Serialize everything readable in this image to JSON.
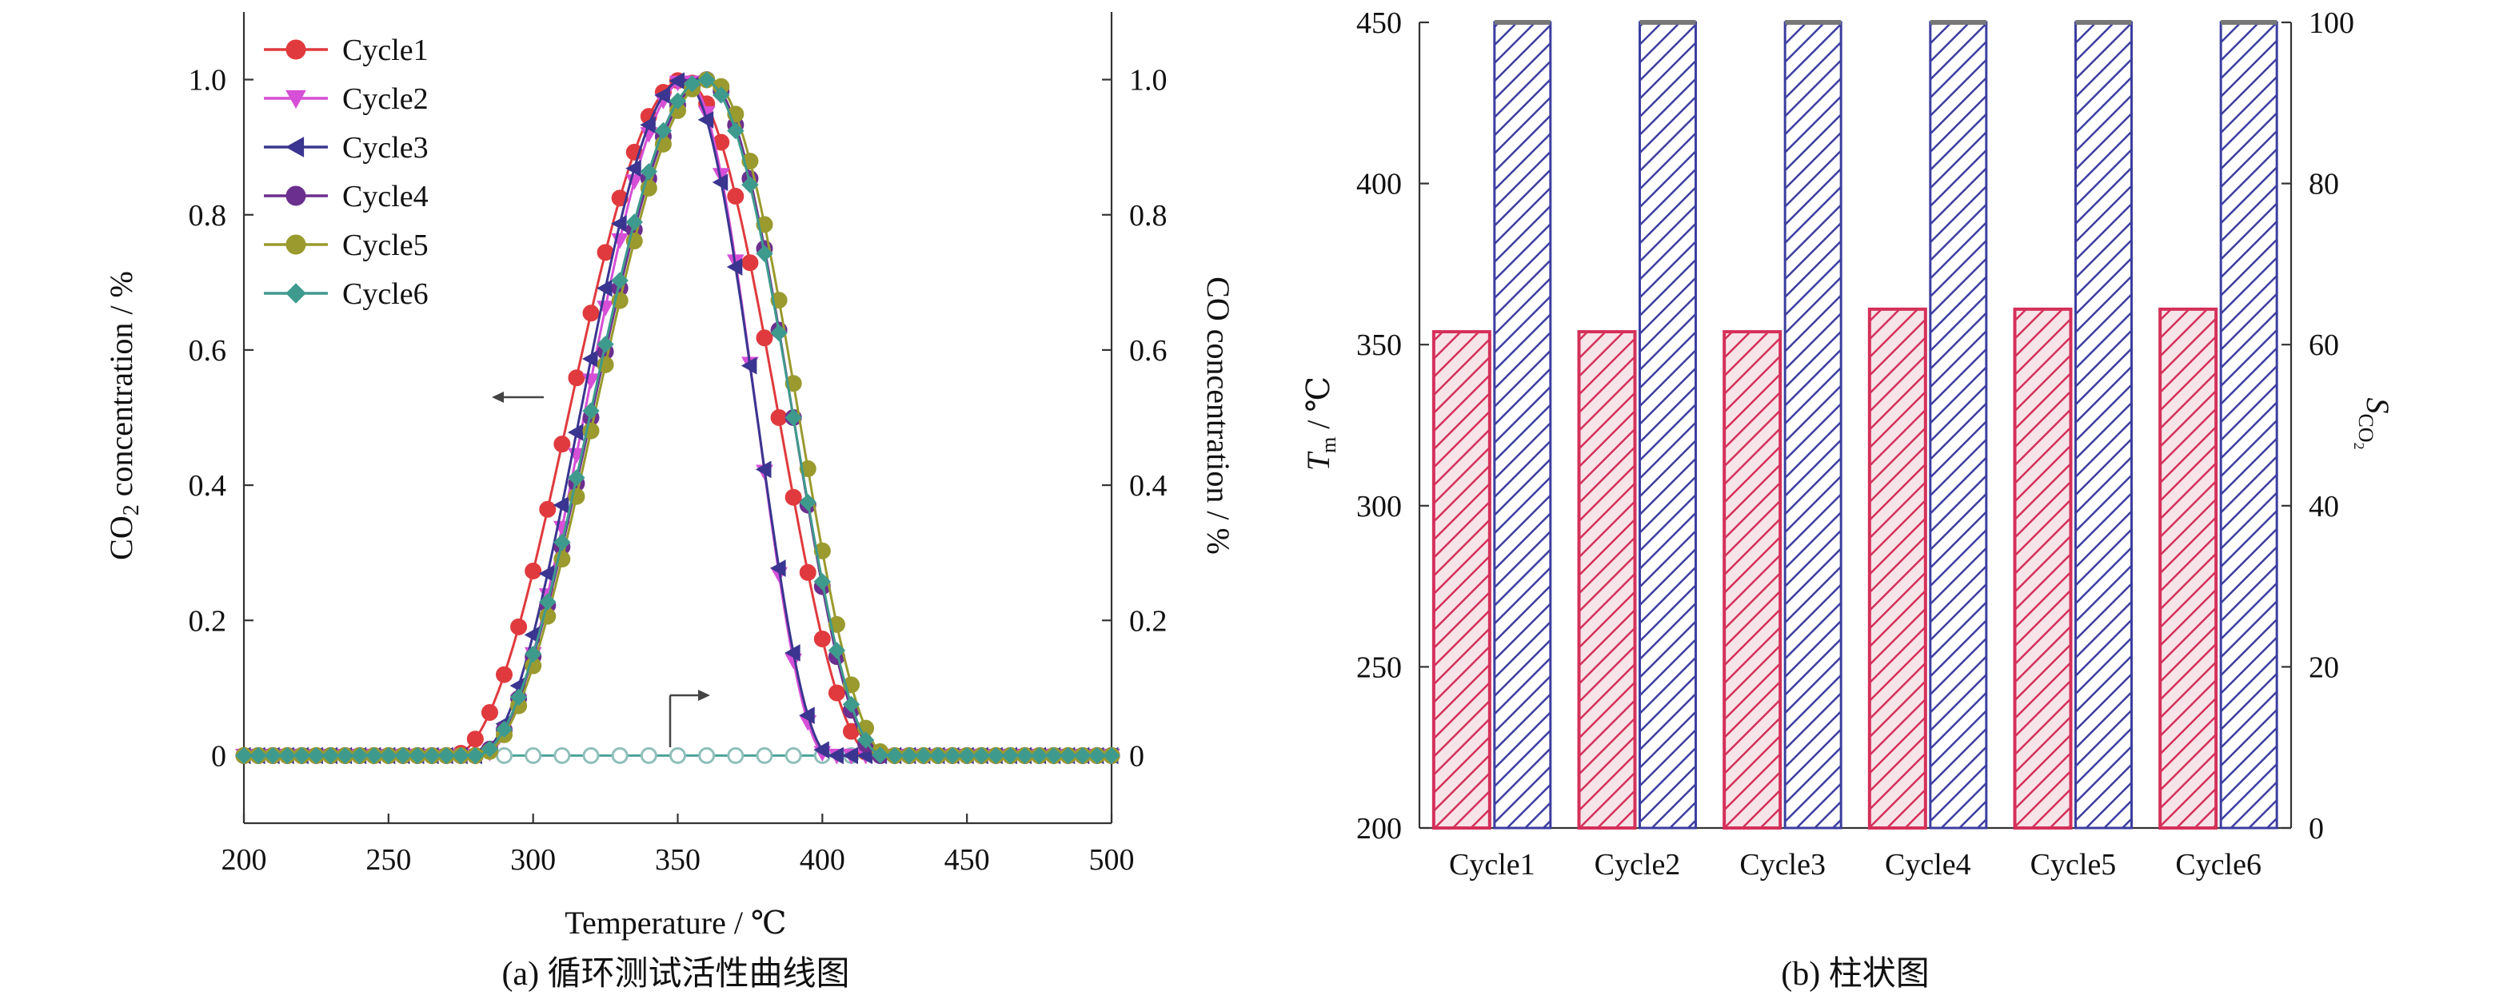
{
  "panels": {
    "a": {
      "caption": "(a) 循环测试活性曲线图",
      "xlabel": "Temperature / ℃",
      "ylabel_left": "CO2 concentration / %",
      "ylabel_right": "CO concentration / %",
      "legend": [
        "Cycle1",
        "Cycle2",
        "Cycle3",
        "Cycle4",
        "Cycle5",
        "Cycle6"
      ]
    },
    "b": {
      "caption": "(b) 柱状图",
      "ylabel_left": "Tm / ℃",
      "ylabel_right": "SCO2"
    }
  },
  "chart_data": [
    {
      "type": "line",
      "x_unit": "℃",
      "xlim": [
        200,
        500
      ],
      "xticks": [
        200,
        250,
        300,
        350,
        400,
        450,
        500
      ],
      "ylim": [
        -0.1,
        1.1
      ],
      "yticks": [
        0,
        0.2,
        0.4,
        0.6,
        0.8,
        1.0
      ],
      "ytick_labels": [
        "0",
        "0.2",
        "0.4",
        "0.6",
        "0.8",
        "1.0"
      ],
      "yticks_right": [
        0,
        0.2,
        0.4,
        0.6,
        0.8,
        1.0
      ],
      "ytick_labels_right": [
        "0",
        "0.2",
        "0.4",
        "0.6",
        "0.8",
        "1.0"
      ],
      "grid": false,
      "legend_position": "top-left",
      "annotations": [
        "left arrow at CO2 curves pointing to left axis",
        "right arrow at CO baseline pointing to right axis"
      ],
      "series": [
        {
          "name": "Cycle1",
          "color": "#e03a3e",
          "marker": "circle",
          "start": 272,
          "peak": 352,
          "end": 418
        },
        {
          "name": "Cycle2",
          "color": "#d64fd6",
          "marker": "triangle-down",
          "start": 282,
          "peak": 353,
          "end": 402
        },
        {
          "name": "Cycle3",
          "color": "#3a3590",
          "marker": "triangle-left",
          "start": 280,
          "peak": 352,
          "end": 403
        },
        {
          "name": "Cycle4",
          "color": "#6b2f8f",
          "marker": "circle",
          "start": 280,
          "peak": 360,
          "end": 420
        },
        {
          "name": "Cycle5",
          "color": "#9a9a2e",
          "marker": "circle",
          "start": 281,
          "peak": 361,
          "end": 423
        },
        {
          "name": "Cycle6",
          "color": "#3f9a8e",
          "marker": "diamond",
          "start": 280,
          "peak": 359,
          "end": 421
        }
      ],
      "co_series_value": 0
    },
    {
      "type": "bar",
      "categories": [
        "Cycle1",
        "Cycle2",
        "Cycle3",
        "Cycle4",
        "Cycle5",
        "Cycle6"
      ],
      "ylim_left": [
        200,
        450
      ],
      "yticks_left": [
        200,
        250,
        300,
        350,
        400,
        450
      ],
      "ylim_right": [
        0,
        100
      ],
      "yticks_right": [
        0,
        20,
        40,
        60,
        80,
        100
      ],
      "series": [
        {
          "axis": "left",
          "color": "#d4305a",
          "pattern": "hatch",
          "values": [
            354,
            354,
            354,
            361,
            361,
            361
          ]
        },
        {
          "axis": "right",
          "color": "#3c3ea0",
          "pattern": "hatch",
          "values": [
            100,
            100,
            100,
            100,
            100,
            100
          ]
        }
      ]
    }
  ]
}
